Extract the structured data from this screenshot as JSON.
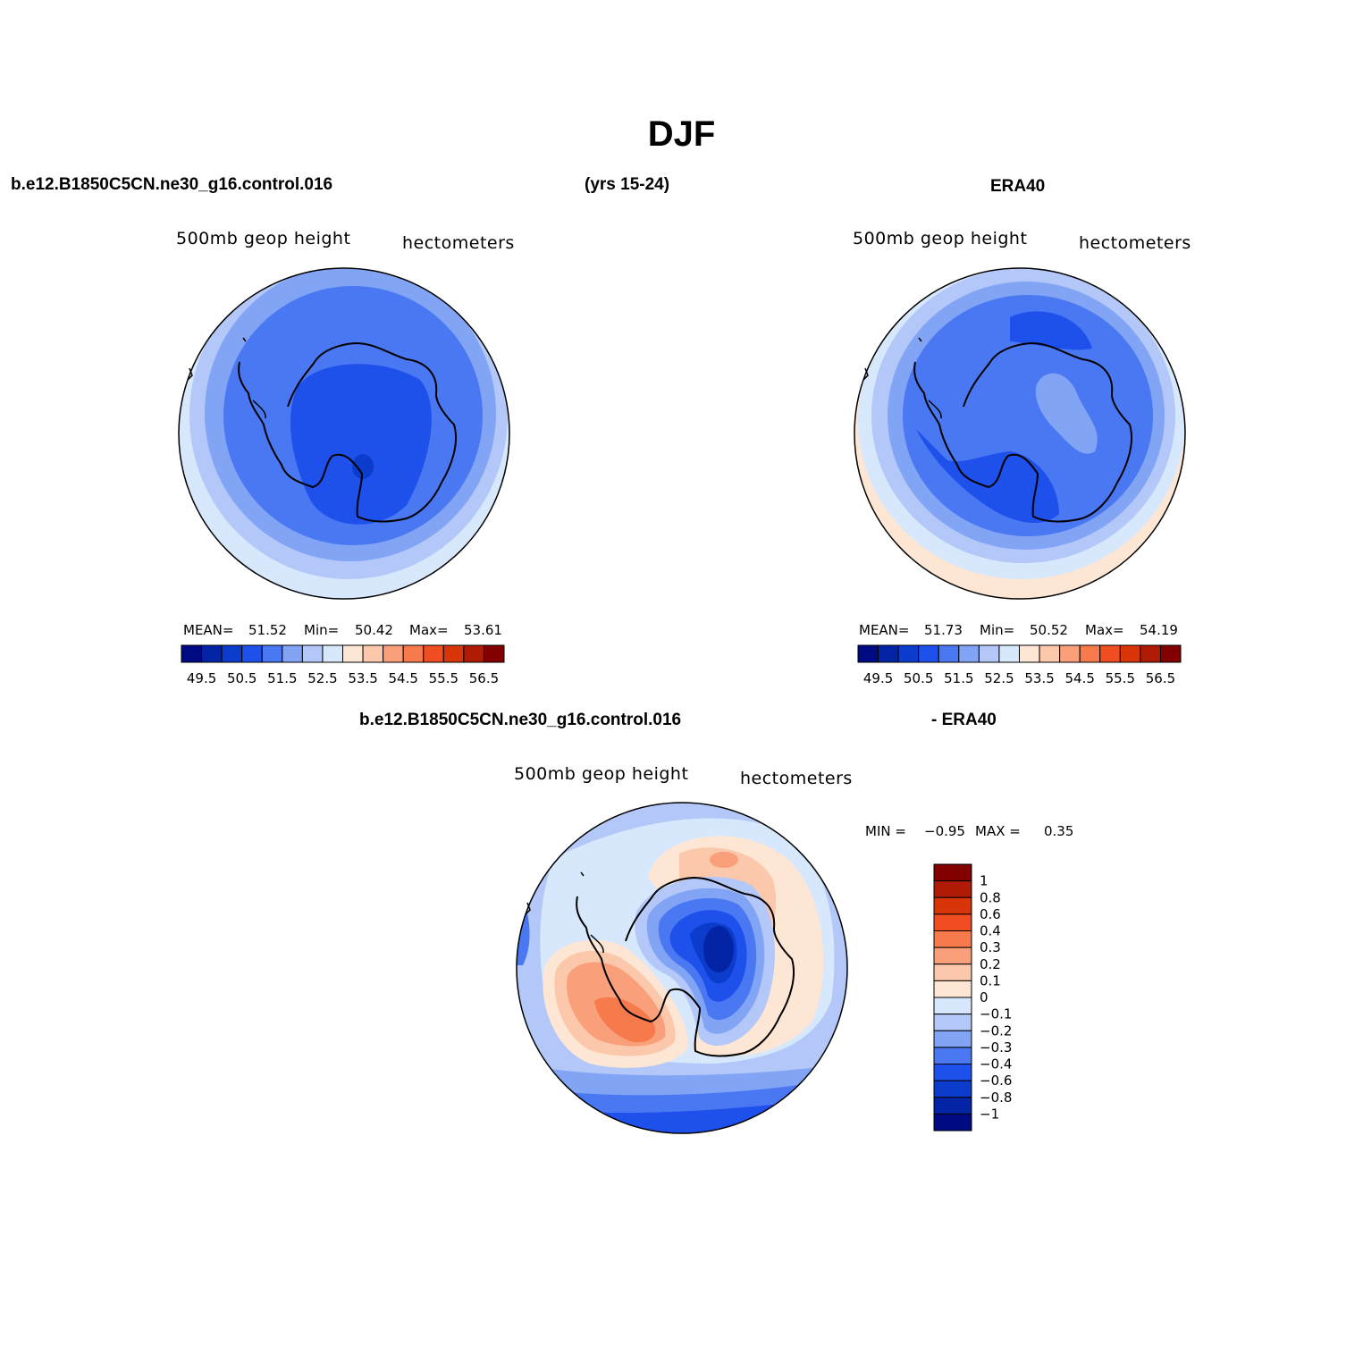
{
  "title": "DJF",
  "top_left_header": "b.e12.B1850C5CN.ne30_g16.control.016",
  "top_years": "(yrs 15-24)",
  "top_right_header": "ERA40",
  "bottom_header_model": "b.e12.B1850C5CN.ne30_g16.control.016",
  "bottom_header_obs": "- ERA40",
  "chart_data": [
    {
      "type": "heatmap",
      "name": "model-map",
      "variable": "500mb geop height",
      "units": "hectometers",
      "stats": {
        "mean_label": "MEAN=",
        "mean": "51.52",
        "min_label": "Min=",
        "min": "50.42",
        "max_label": "Max=",
        "max": "53.61"
      },
      "levels": [
        "49.5",
        "50.5",
        "51.5",
        "52.5",
        "53.5",
        "54.5",
        "55.5",
        "56.5"
      ],
      "colors": [
        "#000a82",
        "#0424a6",
        "#0b3ccc",
        "#1e50ec",
        "#4a78f2",
        "#82a4f5",
        "#b3c8f8",
        "#d8e8fc",
        "#fde6d4",
        "#fcc8ac",
        "#f9a07a",
        "#f67a4c",
        "#f04e22",
        "#d83608",
        "#b01b05",
        "#820000"
      ]
    },
    {
      "type": "heatmap",
      "name": "era40-map",
      "variable": "500mb geop height",
      "units": "hectometers",
      "stats": {
        "mean_label": "MEAN=",
        "mean": "51.73",
        "min_label": "Min=",
        "min": "50.52",
        "max_label": "Max=",
        "max": "54.19"
      },
      "levels": [
        "49.5",
        "50.5",
        "51.5",
        "52.5",
        "53.5",
        "54.5",
        "55.5",
        "56.5"
      ],
      "colors": [
        "#000a82",
        "#0424a6",
        "#0b3ccc",
        "#1e50ec",
        "#4a78f2",
        "#82a4f5",
        "#b3c8f8",
        "#d8e8fc",
        "#fde6d4",
        "#fcc8ac",
        "#f9a07a",
        "#f67a4c",
        "#f04e22",
        "#d83608",
        "#b01b05",
        "#820000"
      ]
    },
    {
      "type": "heatmap",
      "name": "difference-map",
      "variable": "500mb geop height",
      "units": "hectometers",
      "stats": {
        "min_label": "MIN =",
        "min": "−0.95",
        "max_label": "MAX =",
        "max": "0.35"
      },
      "levels": [
        "1",
        "0.8",
        "0.6",
        "0.4",
        "0.3",
        "0.2",
        "0.1",
        "0",
        "−0.1",
        "−0.2",
        "−0.3",
        "−0.4",
        "−0.6",
        "−0.8",
        "−1"
      ],
      "colors": [
        "#820000",
        "#b01b05",
        "#d83608",
        "#f04e22",
        "#f67a4c",
        "#f9a07a",
        "#fcc8ac",
        "#fde6d4",
        "#d8e8fc",
        "#b3c8f8",
        "#82a4f5",
        "#4a78f2",
        "#1e50ec",
        "#0b3ccc",
        "#0424a6",
        "#000a82"
      ]
    }
  ]
}
